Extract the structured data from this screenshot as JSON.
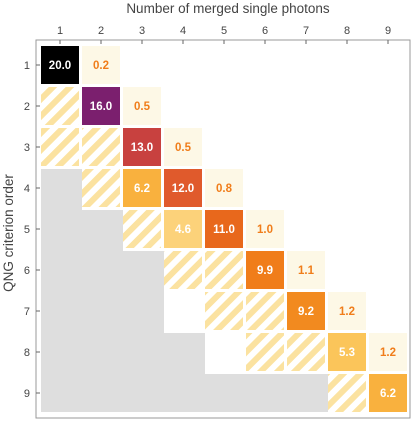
{
  "chart_data": {
    "type": "heatmap",
    "title": "",
    "xlabel": "Number of merged single photons",
    "ylabel": "QNG criterion order",
    "x_ticks": [
      "1",
      "2",
      "3",
      "4",
      "5",
      "6",
      "7",
      "8",
      "9"
    ],
    "y_ticks": [
      "1",
      "2",
      "3",
      "4",
      "5",
      "6",
      "7",
      "8",
      "9"
    ],
    "cells": [
      {
        "row": 1,
        "col": 1,
        "value": 20.0,
        "label": "20.0",
        "color": "#000000",
        "text_color": "#ffffff"
      },
      {
        "row": 1,
        "col": 2,
        "value": 0.2,
        "label": "0.2",
        "color": "#fdf8e6",
        "text_color": "#f07d1a"
      },
      {
        "row": 2,
        "col": 2,
        "value": 16.0,
        "label": "16.0",
        "color": "#7b1f6e",
        "text_color": "#ffffff"
      },
      {
        "row": 2,
        "col": 3,
        "value": 0.5,
        "label": "0.5",
        "color": "#fdf8e6",
        "text_color": "#f07d1a"
      },
      {
        "row": 3,
        "col": 3,
        "value": 13.0,
        "label": "13.0",
        "color": "#c8413f",
        "text_color": "#ffffff"
      },
      {
        "row": 3,
        "col": 4,
        "value": 0.5,
        "label": "0.5",
        "color": "#fdf8e6",
        "text_color": "#f07d1a"
      },
      {
        "row": 4,
        "col": 3,
        "value": 6.2,
        "label": "6.2",
        "color": "#f9b13e",
        "text_color": "#ffffff"
      },
      {
        "row": 4,
        "col": 4,
        "value": 12.0,
        "label": "12.0",
        "color": "#e05a2c",
        "text_color": "#ffffff"
      },
      {
        "row": 4,
        "col": 5,
        "value": 0.8,
        "label": "0.8",
        "color": "#fdf8e6",
        "text_color": "#f07d1a"
      },
      {
        "row": 5,
        "col": 4,
        "value": 4.6,
        "label": "4.6",
        "color": "#fcd27a",
        "text_color": "#ffffff"
      },
      {
        "row": 5,
        "col": 5,
        "value": 11.0,
        "label": "11.0",
        "color": "#e8681c",
        "text_color": "#ffffff"
      },
      {
        "row": 5,
        "col": 6,
        "value": 1.0,
        "label": "1.0",
        "color": "#fdf8e6",
        "text_color": "#f07d1a"
      },
      {
        "row": 6,
        "col": 6,
        "value": 9.9,
        "label": "9.9",
        "color": "#f07d1a",
        "text_color": "#ffffff"
      },
      {
        "row": 6,
        "col": 7,
        "value": 1.1,
        "label": "1.1",
        "color": "#fdf8e6",
        "text_color": "#f07d1a"
      },
      {
        "row": 7,
        "col": 7,
        "value": 9.2,
        "label": "9.2",
        "color": "#f28a1f",
        "text_color": "#ffffff"
      },
      {
        "row": 7,
        "col": 8,
        "value": 1.2,
        "label": "1.2",
        "color": "#fdf8e6",
        "text_color": "#f07d1a"
      },
      {
        "row": 8,
        "col": 8,
        "value": 5.3,
        "label": "5.3",
        "color": "#fbc55a",
        "text_color": "#ffffff"
      },
      {
        "row": 8,
        "col": 9,
        "value": 1.2,
        "label": "1.2",
        "color": "#fdf8e6",
        "text_color": "#f07d1a"
      },
      {
        "row": 9,
        "col": 9,
        "value": 6.2,
        "label": "6.2",
        "color": "#f9b13e",
        "text_color": "#ffffff"
      }
    ],
    "hatched_cells": [
      [
        2,
        1
      ],
      [
        3,
        1
      ],
      [
        3,
        2
      ],
      [
        4,
        2
      ],
      [
        5,
        3
      ],
      [
        6,
        4
      ],
      [
        6,
        5
      ],
      [
        7,
        5
      ],
      [
        7,
        6
      ],
      [
        8,
        6
      ],
      [
        8,
        7
      ],
      [
        9,
        8
      ]
    ],
    "colors": {
      "background_region": "#dedede",
      "hatch_stripe": "#fbe2a0",
      "hatch_base": "#ffffff",
      "frame": "#999999"
    }
  }
}
